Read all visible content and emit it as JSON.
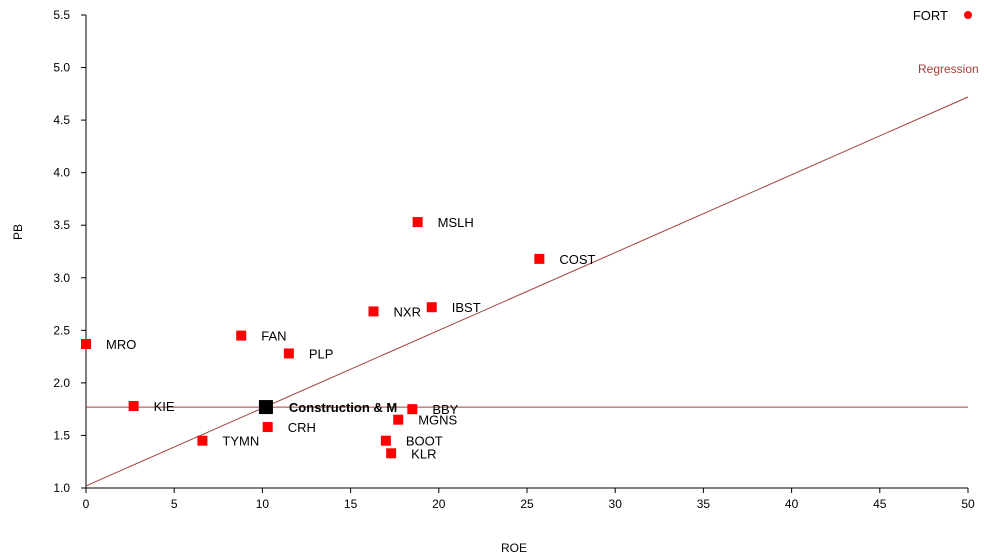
{
  "chart_data": {
    "type": "scatter",
    "title": "",
    "xlabel": "ROE",
    "ylabel": "PB",
    "xlim": [
      0,
      50
    ],
    "ylim": [
      1.0,
      5.5
    ],
    "xticks": [
      "0",
      "5",
      "10",
      "15",
      "20",
      "25",
      "30",
      "35",
      "40",
      "45",
      "50"
    ],
    "yticks": [
      "1.0",
      "1.5",
      "2.0",
      "2.5",
      "3.0",
      "3.5",
      "4.0",
      "4.5",
      "5.0",
      "5.5"
    ],
    "grid": false,
    "points": [
      {
        "label": "FORT",
        "x": 50,
        "y": 5.5,
        "marker": "circle"
      },
      {
        "label": "MSLH",
        "x": 18.8,
        "y": 3.53
      },
      {
        "label": "COST",
        "x": 25.7,
        "y": 3.18
      },
      {
        "label": "IBST",
        "x": 19.6,
        "y": 2.72
      },
      {
        "label": "NXR",
        "x": 16.3,
        "y": 2.68
      },
      {
        "label": "FAN",
        "x": 8.8,
        "y": 2.45
      },
      {
        "label": "MRO",
        "x": 0.0,
        "y": 2.37
      },
      {
        "label": "PLP",
        "x": 11.5,
        "y": 2.28
      },
      {
        "label": "KIE",
        "x": 2.7,
        "y": 1.78
      },
      {
        "label": "Construction & M",
        "x": 10.2,
        "y": 1.77,
        "highlight": true
      },
      {
        "label": "BBY",
        "x": 18.5,
        "y": 1.75
      },
      {
        "label": "MGNS",
        "x": 17.7,
        "y": 1.65
      },
      {
        "label": "CRH",
        "x": 10.3,
        "y": 1.58
      },
      {
        "label": "BOOT",
        "x": 17.0,
        "y": 1.45
      },
      {
        "label": "TYMN",
        "x": 6.6,
        "y": 1.45
      },
      {
        "label": "KLR",
        "x": 17.3,
        "y": 1.33
      }
    ],
    "regression": {
      "label": "Regression",
      "y_at_x0": 1.02,
      "y_at_x50": 4.72
    },
    "reference_line_y": 1.77,
    "colors": {
      "points": "#ff0000",
      "highlight": "#000000",
      "regression": "#a0403a"
    }
  }
}
